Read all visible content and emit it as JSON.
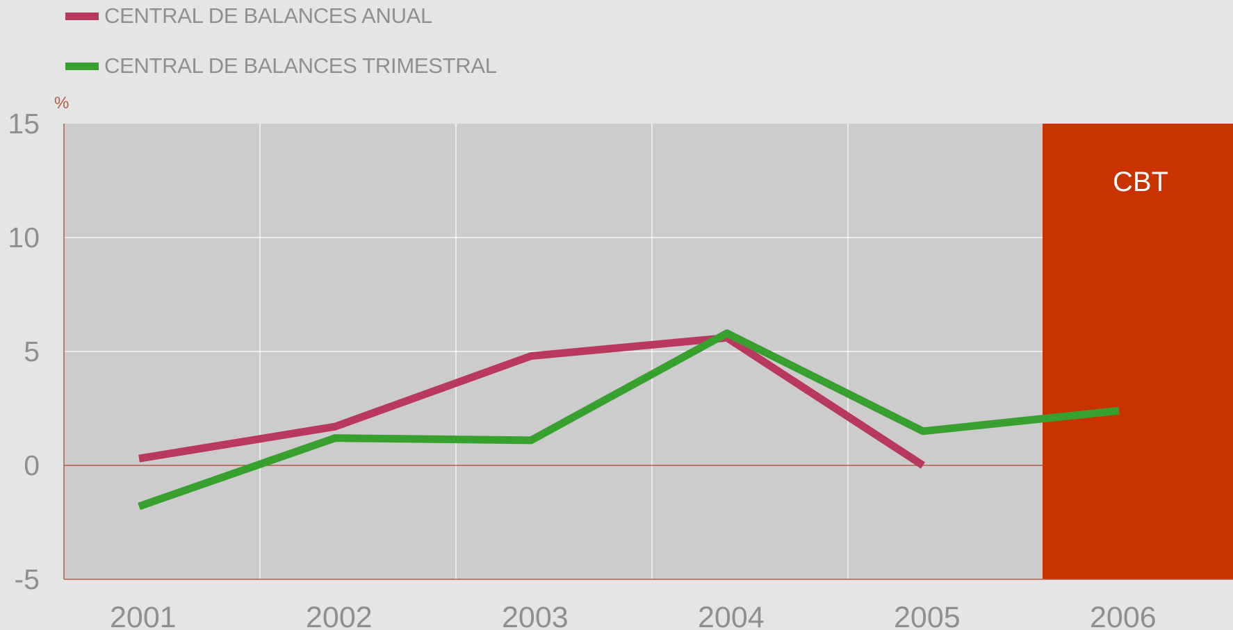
{
  "chart_data": {
    "type": "line",
    "title": "",
    "xlabel": "",
    "ylabel": "%",
    "categories": [
      "2001",
      "2002",
      "2003",
      "2004",
      "2005",
      "2006"
    ],
    "ylim": [
      -5,
      15
    ],
    "yticks": [
      -5,
      0,
      5,
      10,
      15
    ],
    "grid": true,
    "legend_position": "top-left",
    "series": [
      {
        "name": "CENTRAL DE BALANCES ANUAL",
        "color": "#b8385e",
        "values": [
          0.3,
          1.7,
          4.8,
          5.6,
          0.0,
          null
        ]
      },
      {
        "name": "CENTRAL DE BALANCES TRIMESTRAL",
        "color": "#37a02e",
        "values": [
          -1.8,
          1.2,
          1.1,
          5.8,
          1.5,
          2.4
        ]
      }
    ],
    "shaded_region": {
      "label": "CBT",
      "from_category": "2006",
      "color": "#c93300"
    },
    "colors": {
      "plot_background": "#cccccc",
      "page_background": "#e5e5e5",
      "axis": "#b45d45",
      "grid": "#ffffff",
      "text": "#8f8f8f"
    }
  }
}
